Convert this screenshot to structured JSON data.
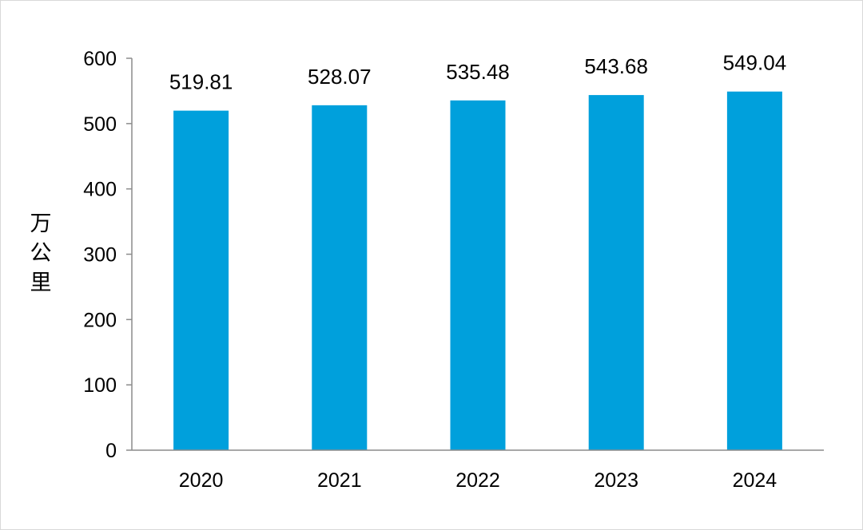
{
  "chart_data": {
    "type": "bar",
    "title": "",
    "xlabel": "",
    "ylabel": "万公里",
    "categories": [
      "2020",
      "2021",
      "2022",
      "2023",
      "2024"
    ],
    "series": [
      {
        "values": [
          519.81,
          528.07,
          535.48,
          543.68,
          549.04
        ],
        "data_labels": [
          "519.81",
          "528.07",
          "535.48",
          "543.68",
          "549.04"
        ],
        "color": "#00a0dc"
      }
    ],
    "ylim": [
      0,
      600
    ],
    "yticks": [
      0,
      100,
      200,
      300,
      400,
      500,
      600
    ],
    "grid": false,
    "legend": "none"
  }
}
